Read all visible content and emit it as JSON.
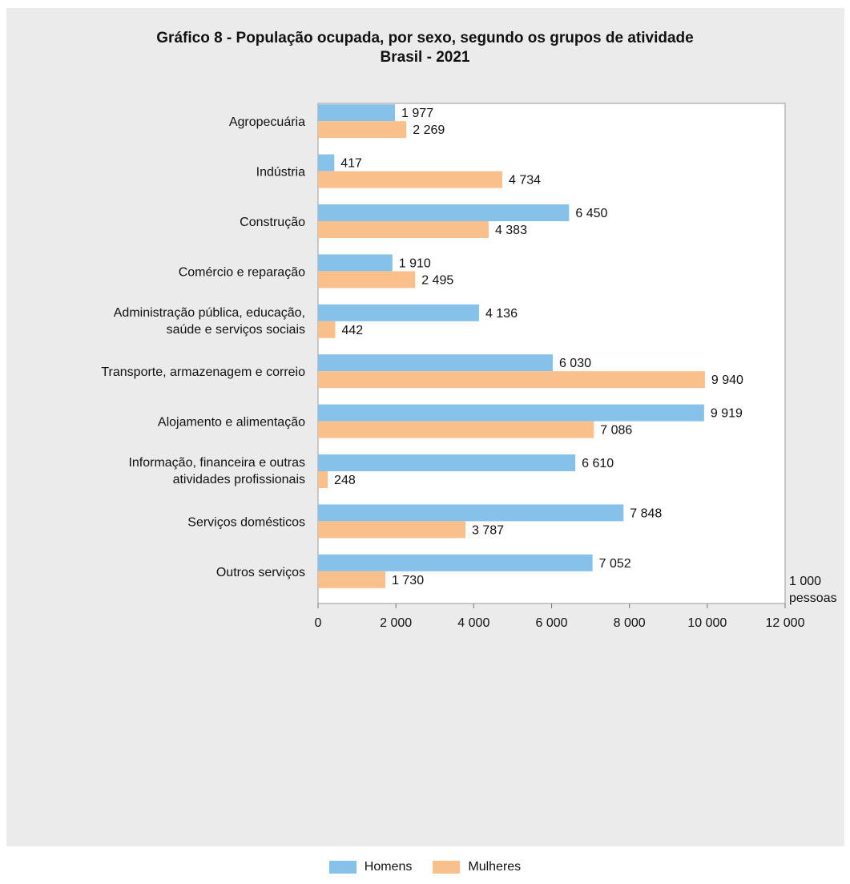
{
  "chart_data": {
    "type": "bar",
    "orientation": "horizontal",
    "title": "Gráfico 8 - População ocupada, por sexo, segundo os grupos de atividade",
    "subtitle": "Brasil - 2021",
    "unit_label": [
      "1 000",
      "pessoas"
    ],
    "categories": [
      [
        "Agropecuária"
      ],
      [
        "Indústria"
      ],
      [
        "Construção"
      ],
      [
        "Comércio e reparação"
      ],
      [
        "Administração pública, educação,",
        "saúde e serviços sociais"
      ],
      [
        "Transporte, armazenagem e correio"
      ],
      [
        "Alojamento e alimentação"
      ],
      [
        "Informação, financeira e outras",
        "atividades profissionais"
      ],
      [
        "Serviços domésticos"
      ],
      [
        "Outros serviços"
      ]
    ],
    "series": [
      {
        "name": "Homens",
        "color": "#85c1e9",
        "values": [
          1977,
          417,
          6450,
          1910,
          4136,
          6030,
          9919,
          6610,
          7848,
          7052
        ],
        "labels": [
          "1 977",
          "417",
          "6 450",
          "1 910",
          "4 136",
          "6 030",
          "9 919",
          "6 610",
          "7 848",
          "7 052"
        ]
      },
      {
        "name": "Mulheres",
        "color": "#f9c08b",
        "values": [
          2269,
          4734,
          4383,
          2495,
          442,
          9940,
          7086,
          248,
          3787,
          1730
        ],
        "labels": [
          "2 269",
          "4 734",
          "4 383",
          "2 495",
          "442",
          "9 940",
          "7 086",
          "248",
          "3 787",
          "1 730"
        ]
      }
    ],
    "xlim": [
      0,
      12000
    ],
    "xticks": [
      0,
      2000,
      4000,
      6000,
      8000,
      10000,
      12000
    ],
    "xtick_labels": [
      "0",
      "2 000",
      "4 000",
      "6 000",
      "8 000",
      "10 000",
      "12 000"
    ],
    "grid": false,
    "legend_position": "bottom-center"
  }
}
